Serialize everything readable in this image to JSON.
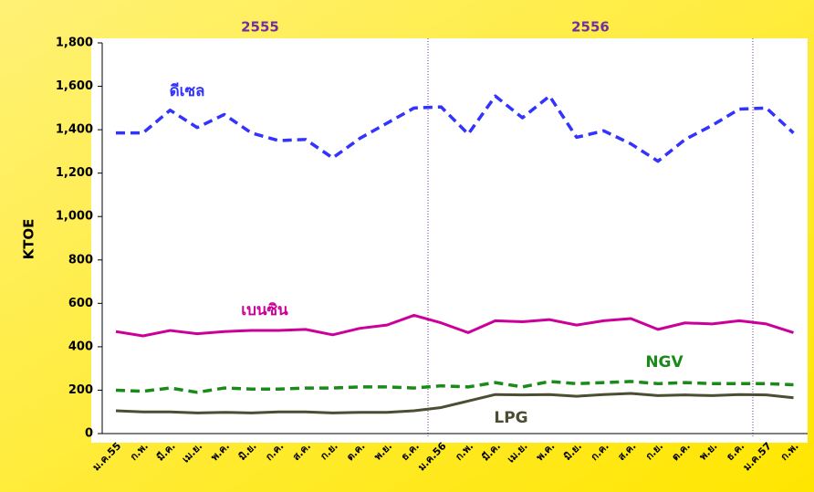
{
  "chart_data": {
    "type": "line",
    "y_label": "KTOE",
    "year_labels": [
      "2555",
      "2556"
    ],
    "categories": [
      "ม.ค.55",
      "ก.พ.",
      "มี.ค.",
      "เม.ย.",
      "พ.ค.",
      "มิ.ย.",
      "ก.ค.",
      "ส.ค.",
      "ก.ย.",
      "ต.ค.",
      "พ.ย.",
      "ธ.ค.",
      "ม.ค.56",
      "ก.พ.",
      "มี.ค.",
      "เม.ย.",
      "พ.ค.",
      "มิ.ย.",
      "ก.ค.",
      "ส.ค.",
      "ก.ย.",
      "ต.ค.",
      "พ.ย.",
      "ธ.ค.",
      "ม.ค.57",
      "ก.พ."
    ],
    "series": [
      {
        "name": "ดีเซล",
        "color": "#3333ff",
        "dashed": true,
        "values": [
          1385,
          1385,
          1490,
          1410,
          1470,
          1385,
          1350,
          1355,
          1270,
          1360,
          1430,
          1500,
          1505,
          1380,
          1555,
          1455,
          1555,
          1365,
          1395,
          1335,
          1255,
          1355,
          1420,
          1495,
          1500,
          1385
        ]
      },
      {
        "name": "เบนซิน",
        "color": "#cc0099",
        "dashed": false,
        "values": [
          470,
          450,
          475,
          460,
          470,
          475,
          475,
          480,
          455,
          485,
          500,
          545,
          510,
          465,
          520,
          515,
          525,
          500,
          520,
          530,
          480,
          510,
          505,
          520,
          505,
          465
        ]
      },
      {
        "name": "NGV",
        "color": "#1a8a1a",
        "dashed": true,
        "values": [
          200,
          195,
          210,
          190,
          210,
          205,
          205,
          210,
          210,
          215,
          215,
          210,
          220,
          215,
          235,
          215,
          240,
          230,
          235,
          240,
          230,
          235,
          230,
          230,
          230,
          225
        ]
      },
      {
        "name": "LPG",
        "color": "#4d4d33",
        "dashed": false,
        "values": [
          105,
          100,
          100,
          95,
          98,
          95,
          100,
          100,
          95,
          98,
          98,
          105,
          120,
          150,
          180,
          178,
          180,
          172,
          180,
          185,
          175,
          178,
          175,
          180,
          178,
          165
        ]
      }
    ],
    "ylim": [
      0,
      1800
    ],
    "yticks": [
      0,
      200,
      400,
      600,
      800,
      {
        "value": 1000,
        "label": "1,000"
      },
      {
        "value": 1200,
        "label": "1,200"
      },
      {
        "value": 1400,
        "label": "1,400"
      },
      {
        "value": 1600,
        "label": "1,600"
      },
      {
        "value": 1800,
        "label": "1,800"
      }
    ],
    "grid": false
  }
}
